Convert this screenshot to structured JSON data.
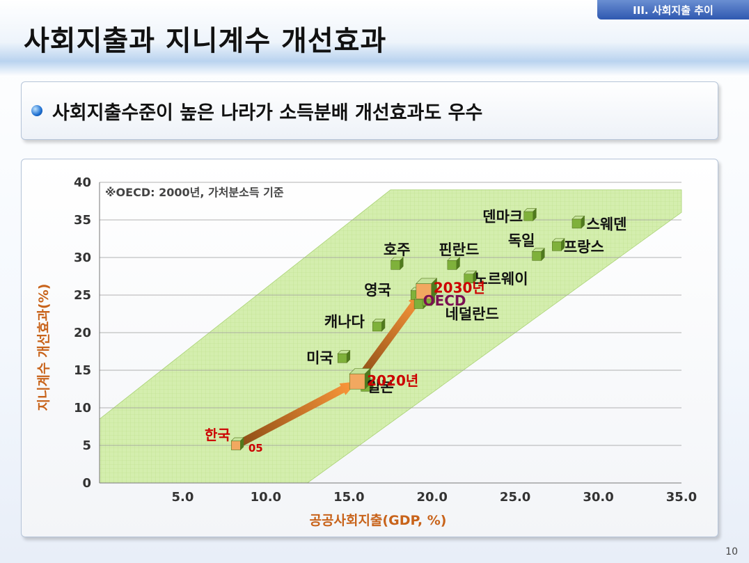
{
  "section_tag": "III. 사회지출 추이",
  "title": "사회지출과 지니계수 개선효과",
  "subtitle": "사회지출수준이 높은 나라가 소득분배 개선효과도 우수",
  "page_number": "10",
  "chart_data": {
    "type": "scatter",
    "note": "※OECD: 2000년, 가처분소득 기준",
    "xlabel": "공공사회지출(GDP, %)",
    "ylabel": "지니계수 개선효과(%)",
    "xlim": [
      0,
      35
    ],
    "ylim": [
      0,
      40
    ],
    "x_ticks": [
      "5.0",
      "10.0",
      "15.0",
      "20.0",
      "25.0",
      "30.0",
      "35.0"
    ],
    "y_ticks": [
      "0",
      "5",
      "10",
      "15",
      "20",
      "25",
      "30",
      "35",
      "40"
    ],
    "points": [
      {
        "label": "덴마크",
        "x": 25.8,
        "y": 35.5
      },
      {
        "label": "스웨덴",
        "x": 28.7,
        "y": 34.5
      },
      {
        "label": "독일",
        "x": 26.3,
        "y": 30.2
      },
      {
        "label": "프랑스",
        "x": 27.5,
        "y": 31.5
      },
      {
        "label": "호주",
        "x": 17.8,
        "y": 29.0
      },
      {
        "label": "핀란드",
        "x": 21.2,
        "y": 29.0
      },
      {
        "label": "노르웨이",
        "x": 22.2,
        "y": 27.2
      },
      {
        "label": "영국",
        "x": 19.0,
        "y": 25.0
      },
      {
        "label": "OECD",
        "x": 19.2,
        "y": 23.8
      },
      {
        "label": "네덜란드",
        "x": 19.7,
        "y": 24.2
      },
      {
        "label": "캐나다",
        "x": 16.7,
        "y": 20.8
      },
      {
        "label": "미국",
        "x": 14.6,
        "y": 16.6
      },
      {
        "label": "일본",
        "x": 16.0,
        "y": 12.8
      }
    ],
    "korea": [
      {
        "label": "한국",
        "sublabel": "05",
        "x": 8.2,
        "y": 5.0
      },
      {
        "label": "2020년",
        "x": 15.5,
        "y": 13.5
      },
      {
        "label": "2030년",
        "x": 19.5,
        "y": 25.5
      }
    ],
    "band_color": "#d4eeae",
    "point_color": "#7fb13b",
    "korea_color": "#f2a860",
    "arrow_color": "#e8852a",
    "label_color_korea": "#cc0000",
    "axis_label_color": "#c8631a"
  }
}
